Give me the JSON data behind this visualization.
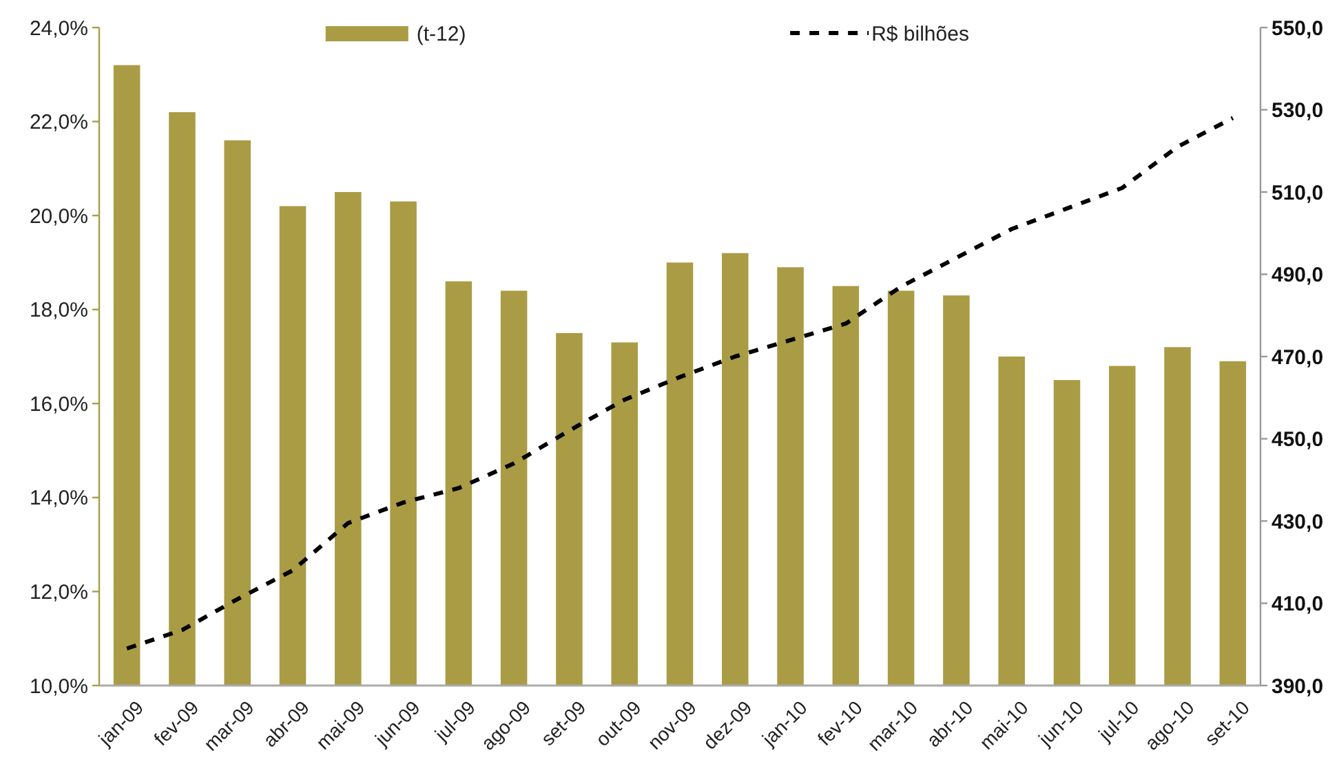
{
  "chart_data": {
    "type": "bar",
    "categories": [
      "jan-09",
      "fev-09",
      "mar-09",
      "abr-09",
      "mai-09",
      "jun-09",
      "jul-09",
      "ago-09",
      "set-09",
      "out-09",
      "nov-09",
      "dez-09",
      "jan-10",
      "fev-10",
      "mar-10",
      "abr-10",
      "mai-10",
      "jun-10",
      "jul-10",
      "ago-10",
      "set-10"
    ],
    "series": [
      {
        "name": "(t-12)",
        "color": "#aa9c45",
        "values": [
          23.2,
          22.2,
          21.6,
          20.2,
          20.5,
          20.3,
          18.6,
          18.4,
          17.5,
          17.3,
          19.0,
          19.2,
          18.9,
          18.5,
          18.4,
          18.3,
          17.0,
          16.5,
          16.8,
          17.2,
          16.9
        ]
      },
      {
        "name": "R$ bilhões",
        "type": "line",
        "axis": "y2",
        "color": "#000000",
        "line_style": "dashed",
        "values": [
          399,
          403.5,
          411,
          418,
          429.5,
          434.5,
          438,
          444,
          452,
          459.5,
          465,
          470,
          474,
          478,
          487,
          494,
          501,
          506,
          511,
          521,
          528
        ]
      }
    ],
    "ylim": [
      10,
      24
    ],
    "yticks": [
      {
        "value": 10,
        "label": "10,0%"
      },
      {
        "value": 12,
        "label": "12,0%"
      },
      {
        "value": 14,
        "label": "14,0%"
      },
      {
        "value": 16,
        "label": "16,0%"
      },
      {
        "value": 18,
        "label": "18,0%"
      },
      {
        "value": 20,
        "label": "20,0%"
      },
      {
        "value": 22,
        "label": "22,0%"
      },
      {
        "value": 24,
        "label": "24,0%"
      }
    ],
    "y2lim": [
      390,
      550
    ],
    "y2ticks": [
      {
        "value": 390,
        "label": "390,0"
      },
      {
        "value": 410,
        "label": "410,0"
      },
      {
        "value": 430,
        "label": "430,0"
      },
      {
        "value": 450,
        "label": "450,0"
      },
      {
        "value": 470,
        "label": "470,0"
      },
      {
        "value": 490,
        "label": "490,0"
      },
      {
        "value": 510,
        "label": "510,0"
      },
      {
        "value": 530,
        "label": "530,0"
      },
      {
        "value": 550,
        "label": "550,0"
      }
    ],
    "legend": "top"
  }
}
